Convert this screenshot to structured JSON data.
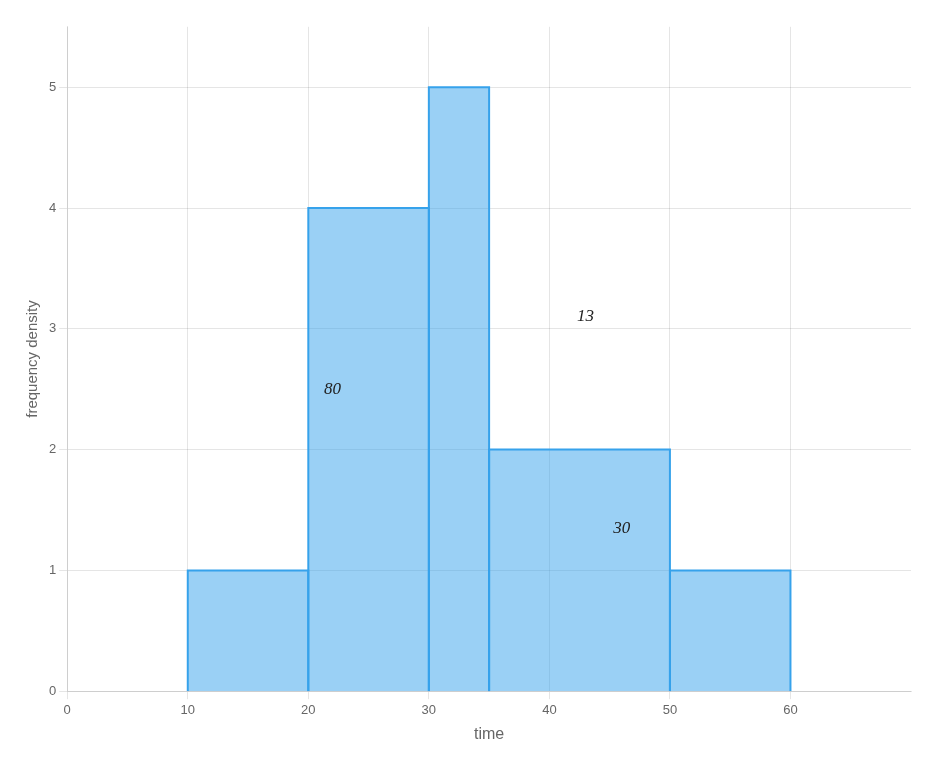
{
  "chart_data": {
    "type": "histogram",
    "xlabel": "time",
    "ylabel": "frequency density",
    "bins": [
      10,
      20,
      30,
      35,
      50,
      60
    ],
    "values": [
      1.0,
      4.0,
      5.0,
      2.0,
      1.0
    ],
    "color": "#36a2eb",
    "annotations": [
      {
        "text": "80",
        "x": 22,
        "y": 2.5
      },
      {
        "text": "13",
        "x": 43,
        "y": 3.1
      },
      {
        "text": "30",
        "x": 46,
        "y": 1.35
      }
    ],
    "xlim": [
      0,
      70
    ],
    "ylim": [
      0,
      5.5
    ],
    "xticks": [
      0,
      10,
      20,
      30,
      40,
      50,
      60
    ],
    "yticks": [
      0,
      1,
      2,
      3,
      4,
      5
    ],
    "grid": true
  }
}
